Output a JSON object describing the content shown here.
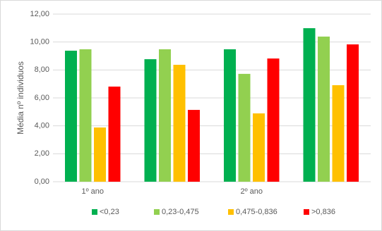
{
  "chart_data": {
    "type": "bar",
    "y_label": "Média nº individuos",
    "categories": [
      "1º ano",
      null,
      "2º ano",
      null
    ],
    "series": [
      {
        "name": "<0,23",
        "color": "#00b050",
        "values": [
          9.38,
          8.77,
          9.48,
          10.99
        ]
      },
      {
        "name": "0,23-0,475",
        "color": "#92d050",
        "values": [
          9.48,
          9.48,
          7.72,
          10.39
        ]
      },
      {
        "name": "0,475-0,836",
        "color": "#ffc000",
        "values": [
          3.88,
          8.37,
          4.89,
          6.91
        ]
      },
      {
        "name": ">0,836",
        "color": "#ff0000",
        "values": [
          6.81,
          5.14,
          8.82,
          9.83
        ]
      }
    ],
    "ylim": [
      0,
      12
    ],
    "yticks": [
      {
        "value": 0,
        "label": "0,00"
      },
      {
        "value": 2,
        "label": "2,00"
      },
      {
        "value": 4,
        "label": "4,00"
      },
      {
        "value": 6,
        "label": "6,00"
      },
      {
        "value": 8,
        "label": "8,00"
      },
      {
        "value": 10,
        "label": "10,00"
      },
      {
        "value": 12,
        "label": "12,00"
      }
    ],
    "grid": true,
    "legend": "bottom"
  }
}
